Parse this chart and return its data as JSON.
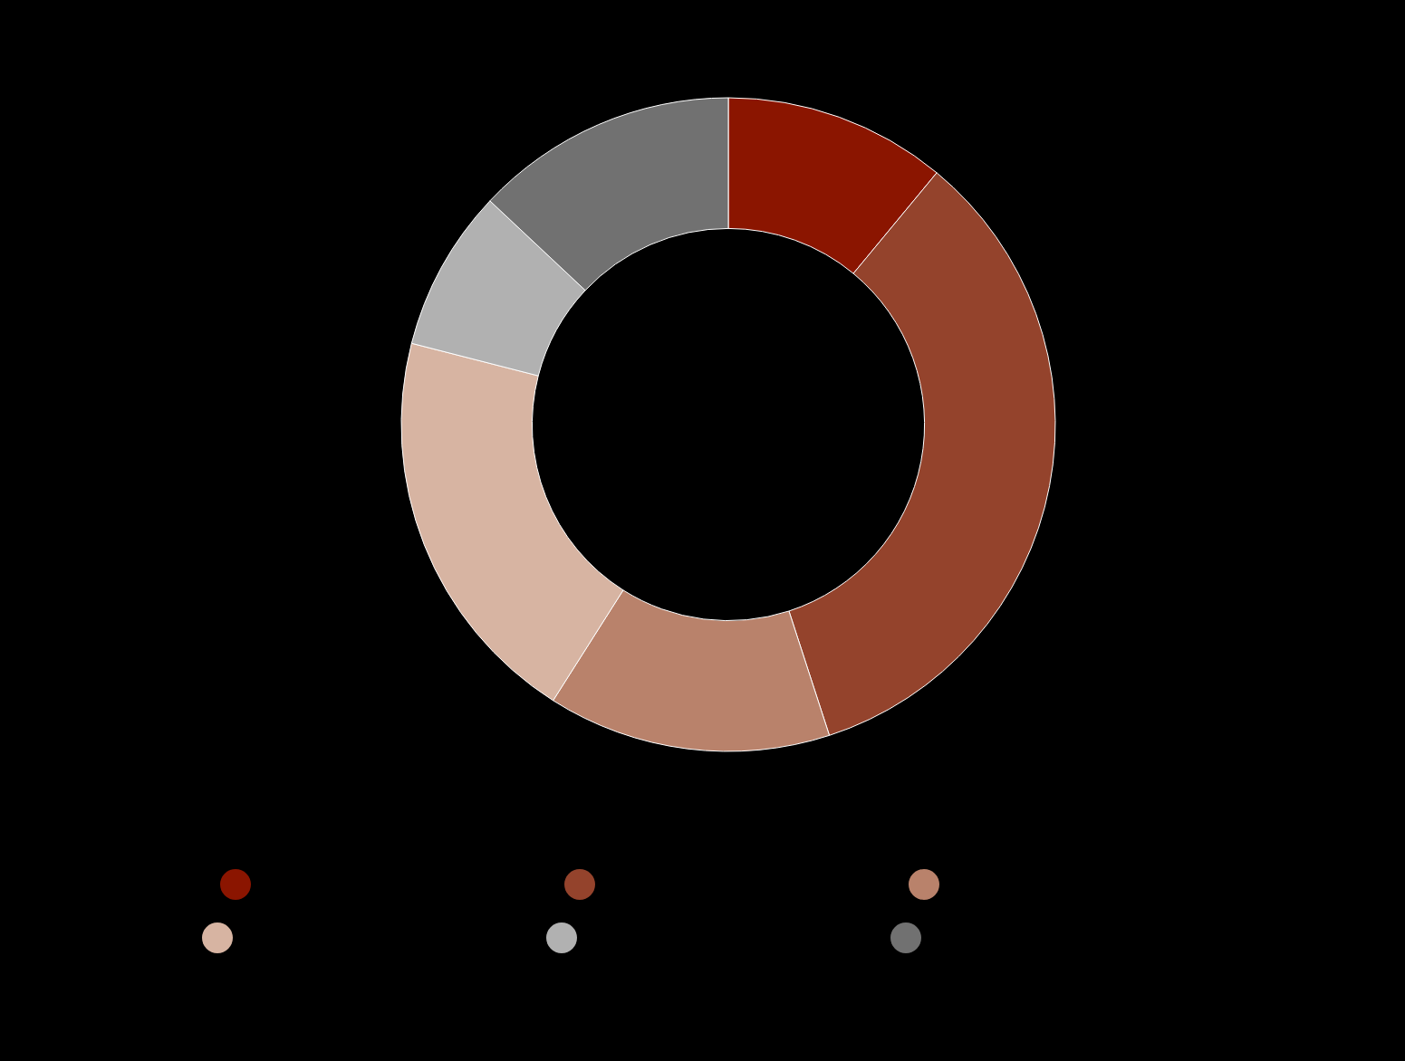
{
  "chart_data": {
    "type": "donut",
    "categories": [
      null,
      null,
      null,
      null,
      null,
      null
    ],
    "values": [
      11,
      34,
      14,
      20,
      8,
      13
    ],
    "colors": [
      "#8b1500",
      "#94432c",
      "#b9826b",
      "#d7b4a2",
      "#b1b1b1",
      "#717171"
    ]
  }
}
